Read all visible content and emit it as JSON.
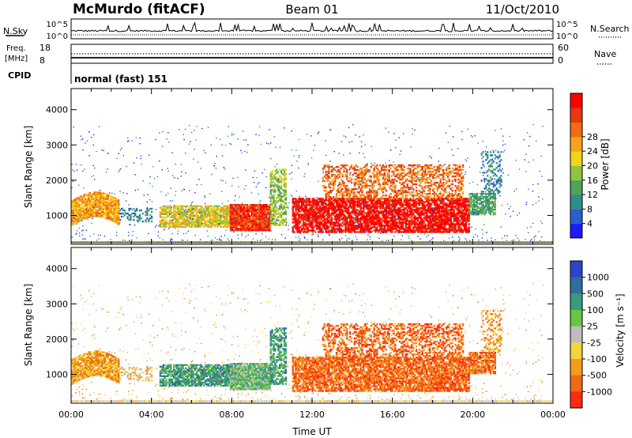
{
  "header": {
    "station": "McMurdo (fitACF)",
    "beam": "Beam 01",
    "date": "11/Oct/2010"
  },
  "top_panels": {
    "nsky_label": "N.Sky",
    "nsky_ticks": [
      "10^5",
      "10^0"
    ],
    "nsearch_label": "N.Search",
    "nsearch_ticks": [
      "10^5",
      "10^0"
    ],
    "freq_label_line1": "Freq.",
    "freq_label_line2": "[MHz]",
    "freq_ticks": [
      "18",
      "8"
    ],
    "nave_label": "Nave",
    "nave_ticks": [
      "60",
      "0"
    ],
    "cpid_label": "CPID",
    "cpid_value": "normal (fast) 151"
  },
  "chart_data": [
    {
      "type": "heatmap",
      "name": "power",
      "ylabel": "Slant Range [km]",
      "yticks": [
        "1000",
        "2000",
        "3000",
        "4000"
      ],
      "ylim": [
        180,
        4600
      ],
      "xlim": [
        0,
        24
      ],
      "colorbar": {
        "label": "Power [dB]",
        "tick_labels": [
          "4",
          "8",
          "12",
          "16",
          "20",
          "24",
          "28"
        ],
        "colors": [
          "#1b1bff",
          "#2a5fd0",
          "#2e8f8a",
          "#4fa35a",
          "#8ec63f",
          "#f3d318",
          "#f6a21b",
          "#f36b14",
          "#e8380f",
          "#ff0000"
        ]
      }
    },
    {
      "type": "heatmap",
      "name": "velocity",
      "ylabel": "Slant Range [km]",
      "yticks": [
        "1000",
        "2000",
        "3000",
        "4000"
      ],
      "ylim": [
        180,
        4600
      ],
      "xlim": [
        0,
        24
      ],
      "xlabel": "Time UT",
      "xticks": [
        "00:00",
        "04:00",
        "08:00",
        "12:00",
        "16:00",
        "20:00",
        "00:00"
      ],
      "colorbar": {
        "label": "Velocity [m s⁻¹]",
        "tick_labels": [
          "1000",
          "500",
          "100",
          "25",
          "-25",
          "-100",
          "-500",
          "-1000"
        ],
        "colors": [
          "#2c45c8",
          "#2d6e9e",
          "#3a9a7e",
          "#66c740",
          "#bdbdbd",
          "#f2d63a",
          "#f29c1e",
          "#f06a14",
          "#ff2b10"
        ]
      }
    }
  ]
}
